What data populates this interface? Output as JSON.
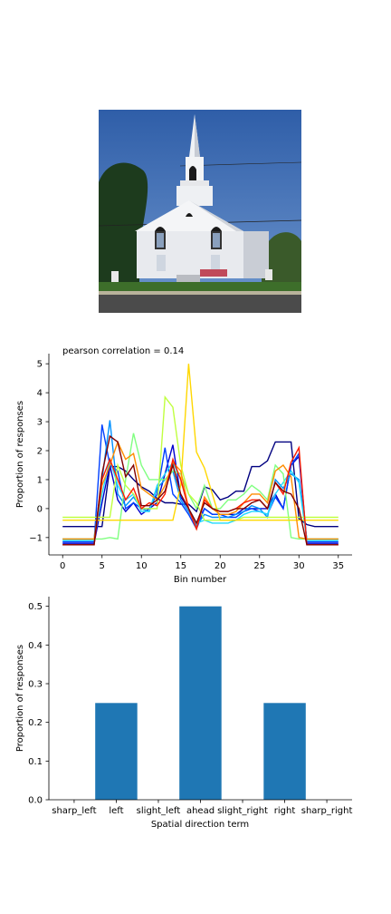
{
  "image": {
    "subject": "church-photo"
  },
  "chart_data": [
    {
      "type": "line",
      "title": "pearson correlation = 0.14",
      "xlabel": "Bin number",
      "ylabel": "Proportion of responses",
      "xlim": [
        -1.75,
        36.75
      ],
      "ylim": [
        -1.6,
        5.35
      ],
      "xticks": [
        "0",
        "5",
        "10",
        "15",
        "20",
        "25",
        "30",
        "35"
      ],
      "yticks": [
        "5",
        "4",
        "3",
        "2",
        "1",
        "0",
        "−1"
      ],
      "x": [
        0,
        1,
        2,
        3,
        4,
        5,
        6,
        7,
        8,
        9,
        10,
        11,
        12,
        13,
        14,
        15,
        16,
        17,
        18,
        19,
        20,
        21,
        22,
        23,
        24,
        25,
        26,
        27,
        28,
        29,
        30,
        31,
        32,
        33,
        34,
        35
      ],
      "series": [
        {
          "color": "#000080",
          "values": [
            -0.62,
            -0.62,
            -0.62,
            -0.62,
            -0.62,
            -0.62,
            1.45,
            1.45,
            1.3,
            1.0,
            0.75,
            0.6,
            0.35,
            0.2,
            0.2,
            0.15,
            0.15,
            -0.1,
            0.75,
            0.65,
            0.3,
            0.4,
            0.6,
            0.6,
            1.45,
            1.45,
            1.65,
            2.3,
            2.3,
            2.3,
            -0.35,
            -0.55,
            -0.62,
            -0.62,
            -0.62,
            -0.62
          ]
        },
        {
          "color": "#0000cc",
          "values": [
            -1.2,
            -1.2,
            -1.2,
            -1.2,
            -1.2,
            0.2,
            1.5,
            0.3,
            -0.1,
            0.2,
            -0.2,
            0.0,
            0.2,
            1.2,
            2.2,
            0.4,
            0.0,
            -0.5,
            0.0,
            -0.2,
            -0.2,
            -0.2,
            -0.2,
            0.0,
            0.0,
            0.0,
            0.0,
            0.5,
            0.0,
            1.5,
            1.8,
            -1.2,
            -1.2,
            -1.2,
            -1.2,
            -1.2
          ]
        },
        {
          "color": "#0040ff",
          "values": [
            -1.15,
            -1.15,
            -1.15,
            -1.15,
            -1.15,
            2.9,
            1.5,
            1.3,
            0.0,
            0.2,
            0.0,
            0.0,
            0.5,
            2.1,
            0.5,
            0.2,
            -0.2,
            -0.7,
            0.0,
            -0.2,
            -0.2,
            -0.3,
            -0.3,
            -0.1,
            0.0,
            -0.1,
            -0.2,
            0.4,
            0.0,
            1.5,
            1.9,
            -1.15,
            -1.15,
            -1.15,
            -1.15,
            -1.15
          ]
        },
        {
          "color": "#0090ff",
          "values": [
            -1.05,
            -1.05,
            -1.05,
            -1.05,
            -1.05,
            1.0,
            3.05,
            0.5,
            0.1,
            0.4,
            0.0,
            -0.1,
            0.7,
            1.0,
            1.3,
            0.3,
            -0.1,
            -0.6,
            -0.2,
            -0.3,
            -0.3,
            -0.3,
            -0.2,
            -0.1,
            0.1,
            0.0,
            -0.3,
            1.0,
            0.7,
            1.2,
            1.0,
            -1.05,
            -1.05,
            -1.05,
            -1.05,
            -1.05
          ]
        },
        {
          "color": "#20d8ff",
          "values": [
            -1.1,
            -1.1,
            -1.1,
            -1.1,
            -1.1,
            0.5,
            1.7,
            0.8,
            0.3,
            0.5,
            -0.1,
            -0.1,
            0.8,
            1.2,
            1.6,
            1.0,
            0.0,
            -0.5,
            -0.4,
            -0.5,
            -0.5,
            -0.5,
            -0.4,
            -0.2,
            -0.1,
            -0.1,
            -0.2,
            0.5,
            0.9,
            1.3,
            0.9,
            -1.1,
            -1.1,
            -1.1,
            -1.1,
            -1.1
          ]
        },
        {
          "color": "#80ff80",
          "values": [
            -1.05,
            -1.05,
            -1.05,
            -1.05,
            -1.05,
            -1.05,
            -1.0,
            -1.05,
            1.0,
            2.6,
            1.5,
            1.0,
            1.0,
            1.0,
            1.3,
            1.2,
            0.5,
            0.0,
            0.8,
            0.0,
            0.0,
            0.3,
            0.3,
            0.5,
            0.8,
            0.6,
            0.3,
            1.5,
            1.2,
            -1.0,
            -1.05,
            -1.05,
            -1.05,
            -1.05,
            -1.05,
            -1.05
          ]
        },
        {
          "color": "#c0ff40",
          "values": [
            -0.3,
            -0.3,
            -0.3,
            -0.3,
            -0.3,
            -0.3,
            -0.3,
            1.5,
            0.8,
            0.5,
            0.0,
            0.0,
            0.0,
            3.85,
            3.5,
            1.5,
            0.5,
            0.2,
            -0.4,
            -0.4,
            -0.4,
            -0.4,
            -0.4,
            -0.3,
            -0.3,
            -0.3,
            -0.3,
            -0.3,
            -0.3,
            -0.3,
            -0.3,
            -0.3,
            -0.3,
            -0.3,
            -0.3,
            -0.3
          ]
        },
        {
          "color": "#ffd700",
          "values": [
            -0.4,
            -0.4,
            -0.4,
            -0.4,
            -0.4,
            -0.4,
            -0.4,
            -0.4,
            -0.4,
            -0.4,
            -0.4,
            -0.4,
            -0.4,
            -0.4,
            -0.4,
            0.8,
            5.0,
            1.95,
            1.4,
            0.5,
            -0.4,
            -0.4,
            -0.4,
            -0.4,
            -0.4,
            -0.4,
            -0.4,
            -0.4,
            -0.4,
            -0.4,
            -0.4,
            -0.4,
            -0.4,
            -0.4,
            -0.4,
            -0.4
          ]
        },
        {
          "color": "#ff8c00",
          "values": [
            -1.05,
            -1.05,
            -1.05,
            -1.05,
            -1.05,
            0.8,
            1.5,
            2.3,
            1.7,
            1.9,
            0.7,
            0.5,
            0.3,
            0.8,
            1.6,
            1.3,
            0.0,
            -0.7,
            0.4,
            0.0,
            -0.2,
            -0.2,
            -0.1,
            0.2,
            0.5,
            0.5,
            0.2,
            1.3,
            1.5,
            1.1,
            -1.0,
            -1.05,
            -1.05,
            -1.05,
            -1.05,
            -1.05
          ]
        },
        {
          "color": "#ff1a00",
          "values": [
            -1.25,
            -1.25,
            -1.25,
            -1.25,
            -1.25,
            1.0,
            1.7,
            1.0,
            0.3,
            0.7,
            0.0,
            0.2,
            0.1,
            0.5,
            1.7,
            1.0,
            0.0,
            -0.7,
            0.3,
            0.0,
            -0.1,
            -0.1,
            0.0,
            0.2,
            0.3,
            0.3,
            0.0,
            0.9,
            0.5,
            1.6,
            2.1,
            -1.25,
            -1.25,
            -1.25,
            -1.25,
            -1.25
          ]
        },
        {
          "color": "#800000",
          "values": [
            -1.25,
            -1.25,
            -1.25,
            -1.25,
            -1.25,
            1.2,
            2.5,
            2.3,
            1.1,
            1.5,
            0.1,
            0.1,
            0.3,
            0.6,
            1.5,
            0.5,
            0.0,
            -0.5,
            0.2,
            0.0,
            -0.1,
            -0.1,
            0.0,
            0.0,
            0.2,
            0.3,
            0.0,
            0.9,
            0.6,
            0.5,
            0.0,
            -1.25,
            -1.25,
            -1.25,
            -1.25,
            -1.25
          ]
        }
      ]
    },
    {
      "type": "bar",
      "xlabel": "Spatial direction term",
      "ylabel": "Proportion of responses",
      "categories": [
        "sharp_left",
        "left",
        "slight_left",
        "ahead",
        "slight_right",
        "right",
        "sharp_right"
      ],
      "values": [
        0,
        0.25,
        0,
        0.5,
        0,
        0.25,
        0
      ],
      "ylim": [
        0,
        0.525
      ],
      "yticks": [
        "0.0",
        "0.1",
        "0.2",
        "0.3",
        "0.4",
        "0.5"
      ],
      "color": "#1f77b4"
    }
  ]
}
